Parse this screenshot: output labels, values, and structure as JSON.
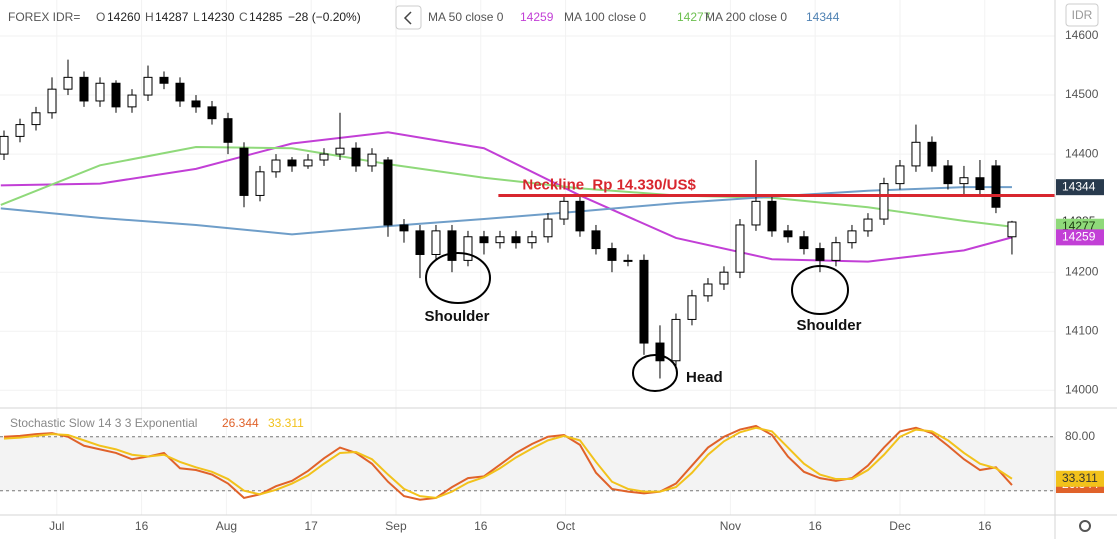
{
  "chart_data": [
    {
      "type": "candlestick",
      "symbol": "FOREX IDR=",
      "ohlc_labels": [
        "O",
        "H",
        "L",
        "C"
      ],
      "change_label": "−28 (−0.20%)",
      "currency_button": "IDR",
      "candles": {
        "open": [
          14400,
          14430,
          14450,
          14470,
          14510,
          14530,
          14490,
          14520,
          14480,
          14500,
          14530,
          14520,
          14490,
          14480,
          14460,
          14410,
          14330,
          14370,
          14390,
          14380,
          14390,
          14400,
          14410,
          14380,
          14390,
          14280,
          14270,
          14230,
          14270,
          14220,
          14260,
          14250,
          14260,
          14250,
          14260,
          14290,
          14320,
          14270,
          14240,
          14220,
          14220,
          14080,
          14050,
          14120,
          14160,
          14180,
          14200,
          14280,
          14320,
          14270,
          14260,
          14240,
          14220,
          14250,
          14270,
          14290,
          14350,
          14380,
          14420,
          14380,
          14350,
          14360,
          14380,
          14260
        ],
        "high": [
          14440,
          14460,
          14480,
          14530,
          14560,
          14540,
          14530,
          14525,
          14510,
          14550,
          14540,
          14530,
          14500,
          14490,
          14470,
          14420,
          14380,
          14400,
          14395,
          14400,
          14410,
          14470,
          14420,
          14410,
          14395,
          14290,
          14280,
          14280,
          14280,
          14270,
          14270,
          14270,
          14270,
          14270,
          14300,
          14330,
          14330,
          14280,
          14250,
          14230,
          14230,
          14110,
          14130,
          14170,
          14190,
          14210,
          14290,
          14390,
          14330,
          14280,
          14270,
          14250,
          14260,
          14280,
          14300,
          14360,
          14390,
          14450,
          14430,
          14390,
          14380,
          14390,
          14390,
          14287
        ],
        "low": [
          14390,
          14420,
          14440,
          14460,
          14500,
          14480,
          14480,
          14470,
          14470,
          14490,
          14510,
          14480,
          14470,
          14450,
          14400,
          14310,
          14320,
          14360,
          14370,
          14375,
          14380,
          14390,
          14370,
          14370,
          14260,
          14250,
          14190,
          14220,
          14200,
          14210,
          14230,
          14240,
          14240,
          14240,
          14250,
          14280,
          14260,
          14230,
          14200,
          14210,
          14060,
          14020,
          14040,
          14110,
          14150,
          14170,
          14190,
          14270,
          14260,
          14250,
          14230,
          14200,
          14210,
          14240,
          14260,
          14280,
          14340,
          14370,
          14370,
          14340,
          14330,
          14330,
          14300,
          14230
        ],
        "close": [
          14430,
          14450,
          14470,
          14510,
          14530,
          14490,
          14520,
          14480,
          14500,
          14530,
          14520,
          14490,
          14480,
          14460,
          14420,
          14330,
          14370,
          14390,
          14380,
          14390,
          14400,
          14410,
          14380,
          14400,
          14280,
          14270,
          14230,
          14270,
          14220,
          14260,
          14250,
          14260,
          14250,
          14260,
          14290,
          14320,
          14270,
          14240,
          14220,
          14220,
          14080,
          14050,
          14120,
          14160,
          14180,
          14200,
          14280,
          14320,
          14270,
          14260,
          14240,
          14220,
          14250,
          14270,
          14290,
          14350,
          14380,
          14420,
          14380,
          14350,
          14360,
          14340,
          14310,
          14285
        ],
        "up_color": "#ffffff",
        "down_color": "#000000"
      },
      "ma": [
        {
          "name": "MA 50 close 0",
          "color": "#c23fd6",
          "x": [
            -0.2,
            6,
            12,
            18,
            24,
            30,
            36,
            42,
            48,
            54,
            60,
            63
          ],
          "values": [
            14347,
            14350,
            14375,
            14418,
            14437,
            14410,
            14330,
            14258,
            14222,
            14218,
            14237,
            14259
          ]
        },
        {
          "name": "MA 100 close 0",
          "color": "#8fd97a",
          "x": [
            -0.2,
            6,
            12,
            18,
            24,
            30,
            36,
            42,
            48,
            54,
            60,
            63
          ],
          "values": [
            14314,
            14381,
            14412,
            14410,
            14383,
            14360,
            14342,
            14330,
            14326,
            14310,
            14287,
            14277
          ]
        },
        {
          "name": "MA 200 close 0",
          "color": "#6f9ec9",
          "x": [
            -0.2,
            6,
            12,
            18,
            24,
            30,
            36,
            42,
            48,
            54,
            60,
            63
          ],
          "values": [
            14308,
            14292,
            14280,
            14264,
            14278,
            14290,
            14303,
            14317,
            14328,
            14338,
            14344,
            14344
          ]
        }
      ],
      "neckline": {
        "value": 14330,
        "label": "Neckline  Rp 14.330/US$",
        "color": "#d8262e",
        "x_start": 30.9
      },
      "annotations": [
        "Shoulder",
        "Head",
        "Shoulder"
      ],
      "xlim": [
        -0.25,
        65.69
      ],
      "xticks": [
        {
          "value": 3.3,
          "label": "Jul"
        },
        {
          "value": 8.6,
          "label": "16"
        },
        {
          "value": 13.9,
          "label": "Aug"
        },
        {
          "value": 19.2,
          "label": "17"
        },
        {
          "value": 24.5,
          "label": "Sep"
        },
        {
          "value": 29.8,
          "label": "16"
        },
        {
          "value": 35.1,
          "label": "Oct"
        },
        {
          "value": 45.4,
          "label": "Nov"
        },
        {
          "value": 50.7,
          "label": "16"
        },
        {
          "value": 56,
          "label": "Dec"
        },
        {
          "value": 61.3,
          "label": "16"
        }
      ],
      "ylim": [
        13970,
        14661
      ],
      "yticks": [
        14000,
        14100,
        14200,
        14400,
        14500,
        14600
      ],
      "grid": true
    },
    {
      "type": "line",
      "title": "Stochastic Slow 14 3 3 Exponential",
      "series": [
        {
          "color": "#e0622a",
          "values": [
            80,
            81,
            83,
            84,
            80,
            70,
            66,
            62,
            55,
            58,
            62,
            45,
            43,
            38,
            28,
            12,
            16,
            25,
            31,
            42,
            56,
            68,
            62,
            50,
            30,
            14,
            10,
            12,
            24,
            34,
            36,
            49,
            62,
            72,
            80,
            82,
            71,
            40,
            22,
            19,
            17,
            19,
            28,
            48,
            68,
            80,
            88,
            92,
            82,
            58,
            41,
            34,
            31,
            34,
            48,
            68,
            86,
            90,
            84,
            70,
            55,
            43,
            46,
            26.344
          ]
        },
        {
          "color": "#f2c21b",
          "values": [
            78,
            79,
            81,
            83,
            82,
            76,
            70,
            66,
            60,
            58,
            60,
            52,
            46,
            41,
            33,
            20,
            16,
            21,
            28,
            37,
            50,
            62,
            63,
            55,
            38,
            22,
            14,
            12,
            19,
            29,
            35,
            45,
            57,
            67,
            76,
            81,
            76,
            52,
            30,
            22,
            19,
            19,
            24,
            40,
            60,
            75,
            85,
            90,
            86,
            68,
            50,
            38,
            33,
            33,
            43,
            60,
            80,
            88,
            86,
            76,
            62,
            50,
            45,
            33.311
          ]
        }
      ],
      "band": [
        20,
        80
      ],
      "ylim": [
        -7,
        112
      ],
      "yticks": [
        {
          "value": 80,
          "label": "80.00"
        }
      ]
    }
  ]
}
